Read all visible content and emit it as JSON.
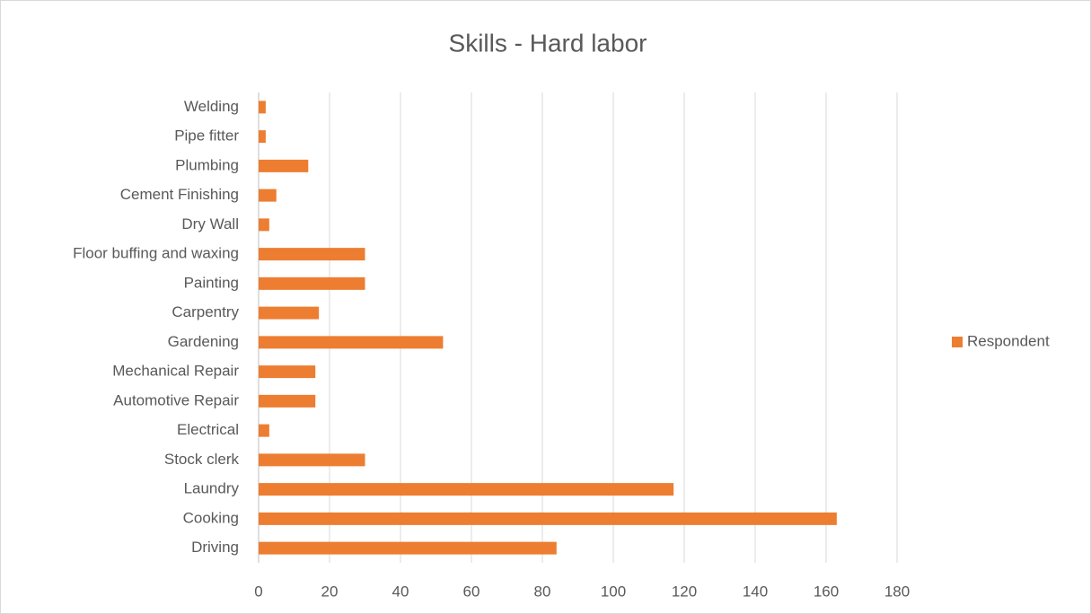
{
  "chart_data": {
    "type": "bar",
    "orientation": "horizontal",
    "title": "Skills - Hard labor",
    "categories": [
      "Driving",
      "Cooking",
      "Laundry",
      "Stock clerk",
      "Electrical",
      "Automotive Repair",
      "Mechanical Repair",
      "Gardening",
      "Carpentry",
      "Painting",
      "Floor buffing and waxing",
      "Dry Wall",
      "Cement Finishing",
      "Plumbing",
      "Pipe fitter",
      "Welding"
    ],
    "series": [
      {
        "name": "Respondent",
        "color": "#ed7d31",
        "values": [
          84,
          163,
          117,
          30,
          3,
          16,
          16,
          52,
          17,
          30,
          30,
          3,
          5,
          14,
          2,
          2
        ]
      }
    ],
    "xlim": [
      0,
      180
    ],
    "xticks": [
      0,
      20,
      40,
      60,
      80,
      100,
      120,
      140,
      160,
      180
    ],
    "grid": true,
    "legend": "right"
  }
}
